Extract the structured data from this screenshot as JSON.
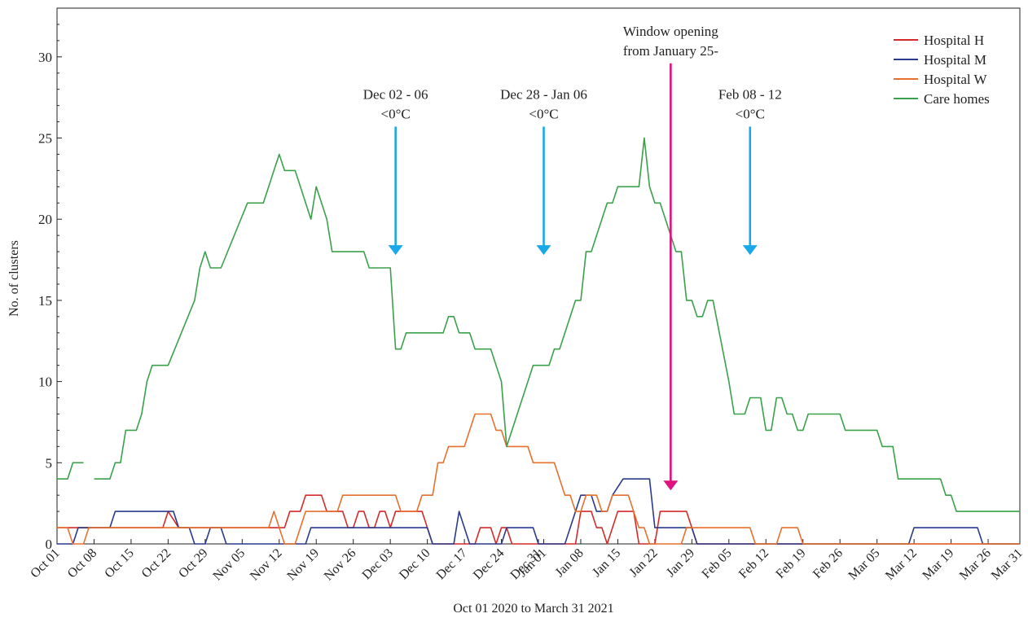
{
  "chart_data": {
    "type": "line",
    "xlabel": "Oct 01 2020 to March 31 2021",
    "ylabel": "No. of clusters",
    "ylim": [
      0,
      33
    ],
    "yticks": [
      0,
      5,
      10,
      15,
      20,
      25,
      30
    ],
    "xlim": [
      0,
      182
    ],
    "xticks": [
      {
        "day": 0,
        "label": "Oct 01"
      },
      {
        "day": 7,
        "label": "Oct 08"
      },
      {
        "day": 14,
        "label": "Oct 15"
      },
      {
        "day": 21,
        "label": "Oct 22"
      },
      {
        "day": 28,
        "label": "Oct 29"
      },
      {
        "day": 35,
        "label": "Nov 05"
      },
      {
        "day": 42,
        "label": "Nov 12"
      },
      {
        "day": 49,
        "label": "Nov 19"
      },
      {
        "day": 56,
        "label": "Nov 26"
      },
      {
        "day": 63,
        "label": "Dec 03"
      },
      {
        "day": 70,
        "label": "Dec 10"
      },
      {
        "day": 77,
        "label": "Dec 17"
      },
      {
        "day": 84,
        "label": "Dec 24"
      },
      {
        "day": 91,
        "label": "Dec 31"
      },
      {
        "day": 92,
        "label": "Jan 01"
      },
      {
        "day": 99,
        "label": "Jan 08"
      },
      {
        "day": 106,
        "label": "Jan 15"
      },
      {
        "day": 113,
        "label": "Jan 22"
      },
      {
        "day": 120,
        "label": "Jan 29"
      },
      {
        "day": 127,
        "label": "Feb 05"
      },
      {
        "day": 134,
        "label": "Feb 12"
      },
      {
        "day": 141,
        "label": "Feb 19"
      },
      {
        "day": 148,
        "label": "Feb 26"
      },
      {
        "day": 155,
        "label": "Mar 05"
      },
      {
        "day": 162,
        "label": "Mar 12"
      },
      {
        "day": 169,
        "label": "Mar 19"
      },
      {
        "day": 176,
        "label": "Mar 26"
      },
      {
        "day": 182,
        "label": "Mar 31"
      }
    ],
    "legend_position": "top-right",
    "series": [
      {
        "name": "Hospital H",
        "color": "#d42a2a",
        "points": [
          [
            0,
            1
          ],
          [
            20,
            1
          ],
          [
            21,
            2
          ],
          [
            23,
            1
          ],
          [
            35,
            1
          ],
          [
            41,
            1
          ],
          [
            43,
            1
          ],
          [
            44,
            2
          ],
          [
            46,
            2
          ],
          [
            47,
            3
          ],
          [
            50,
            3
          ],
          [
            51,
            2
          ],
          [
            54,
            2
          ],
          [
            55,
            1
          ],
          [
            56,
            1
          ],
          [
            57,
            2
          ],
          [
            58,
            2
          ],
          [
            59,
            1
          ],
          [
            60,
            1
          ],
          [
            61,
            2
          ],
          [
            62,
            2
          ],
          [
            63,
            1
          ],
          [
            64,
            2
          ],
          [
            69,
            2
          ],
          [
            70,
            1
          ],
          [
            71,
            0
          ],
          [
            79,
            0
          ],
          [
            80,
            1
          ],
          [
            82,
            1
          ],
          [
            83,
            0
          ],
          [
            84,
            1
          ],
          [
            85,
            1
          ],
          [
            86,
            0
          ],
          [
            98,
            0
          ],
          [
            99,
            2
          ],
          [
            101,
            2
          ],
          [
            102,
            1
          ],
          [
            103,
            1
          ],
          [
            104,
            0
          ],
          [
            106,
            2
          ],
          [
            109,
            2
          ],
          [
            110,
            0
          ],
          [
            113,
            0
          ],
          [
            114,
            2
          ],
          [
            119,
            2
          ],
          [
            120,
            1
          ],
          [
            121,
            0
          ],
          [
            182,
            0
          ]
        ]
      },
      {
        "name": "Hospital M",
        "color": "#2a3a8c",
        "points": [
          [
            0,
            0
          ],
          [
            3,
            0
          ],
          [
            4,
            1
          ],
          [
            10,
            1
          ],
          [
            11,
            2
          ],
          [
            22,
            2
          ],
          [
            23,
            1
          ],
          [
            25,
            1
          ],
          [
            26,
            0
          ],
          [
            28,
            0
          ],
          [
            29,
            1
          ],
          [
            31,
            1
          ],
          [
            32,
            0
          ],
          [
            47,
            0
          ],
          [
            48,
            1
          ],
          [
            56,
            1
          ],
          [
            57,
            1
          ],
          [
            70,
            1
          ],
          [
            71,
            0
          ],
          [
            75,
            0
          ],
          [
            76,
            2
          ],
          [
            77,
            1
          ],
          [
            78,
            0
          ],
          [
            84,
            0
          ],
          [
            85,
            1
          ],
          [
            90,
            1
          ],
          [
            91,
            0
          ],
          [
            96,
            0
          ],
          [
            97,
            1
          ],
          [
            99,
            3
          ],
          [
            101,
            3
          ],
          [
            102,
            2
          ],
          [
            104,
            2
          ],
          [
            105,
            3
          ],
          [
            107,
            4
          ],
          [
            112,
            4
          ],
          [
            113,
            1
          ],
          [
            116,
            1
          ],
          [
            120,
            1
          ],
          [
            121,
            0
          ],
          [
            161,
            0
          ],
          [
            162,
            1
          ],
          [
            174,
            1
          ],
          [
            175,
            0
          ],
          [
            182,
            0
          ]
        ]
      },
      {
        "name": "Hospital W",
        "color": "#e8702e",
        "points": [
          [
            0,
            1
          ],
          [
            2,
            1
          ],
          [
            3,
            0
          ],
          [
            5,
            0
          ],
          [
            6,
            1
          ],
          [
            40,
            1
          ],
          [
            41,
            2
          ],
          [
            42,
            1
          ],
          [
            43,
            0
          ],
          [
            45,
            0
          ],
          [
            46,
            1
          ],
          [
            47,
            2
          ],
          [
            53,
            2
          ],
          [
            54,
            3
          ],
          [
            64,
            3
          ],
          [
            65,
            2
          ],
          [
            68,
            2
          ],
          [
            69,
            3
          ],
          [
            71,
            3
          ],
          [
            72,
            5
          ],
          [
            73,
            5
          ],
          [
            74,
            6
          ],
          [
            77,
            6
          ],
          [
            78,
            7
          ],
          [
            79,
            8
          ],
          [
            82,
            8
          ],
          [
            83,
            7
          ],
          [
            84,
            7
          ],
          [
            85,
            6
          ],
          [
            89,
            6
          ],
          [
            90,
            5
          ],
          [
            94,
            5
          ],
          [
            96,
            3
          ],
          [
            97,
            3
          ],
          [
            98,
            2
          ],
          [
            99,
            2
          ],
          [
            100,
            3
          ],
          [
            102,
            3
          ],
          [
            103,
            2
          ],
          [
            104,
            2
          ],
          [
            105,
            3
          ],
          [
            108,
            3
          ],
          [
            109,
            2
          ],
          [
            110,
            1
          ],
          [
            111,
            1
          ],
          [
            112,
            0
          ],
          [
            118,
            0
          ],
          [
            119,
            1
          ],
          [
            131,
            1
          ],
          [
            132,
            0
          ],
          [
            136,
            0
          ],
          [
            137,
            1
          ],
          [
            140,
            1
          ],
          [
            141,
            0
          ],
          [
            182,
            0
          ]
        ]
      },
      {
        "name": "Care homes",
        "color": "#3aa14a",
        "points": [
          [
            0,
            4
          ],
          [
            2,
            4
          ],
          [
            3,
            5
          ],
          [
            5,
            5
          ],
          null,
          [
            7,
            4
          ],
          [
            10,
            4
          ],
          [
            11,
            5
          ],
          [
            12,
            5
          ],
          [
            13,
            7
          ],
          [
            15,
            7
          ],
          [
            16,
            8
          ],
          [
            17,
            10
          ],
          [
            18,
            11
          ],
          [
            21,
            11
          ],
          [
            26,
            15
          ],
          [
            27,
            17
          ],
          [
            28,
            18
          ],
          [
            29,
            17
          ],
          [
            31,
            17
          ],
          [
            36,
            21
          ],
          [
            39,
            21
          ],
          [
            41,
            23
          ],
          [
            42,
            24
          ],
          [
            43,
            23
          ],
          [
            45,
            23
          ],
          [
            48,
            20
          ],
          [
            49,
            22
          ],
          [
            51,
            20
          ],
          [
            52,
            18
          ],
          [
            58,
            18
          ],
          [
            59,
            17
          ],
          [
            63,
            17
          ],
          [
            64,
            12
          ],
          [
            65,
            12
          ],
          [
            66,
            13
          ],
          [
            73,
            13
          ],
          [
            74,
            14
          ],
          [
            75,
            14
          ],
          [
            76,
            13
          ],
          [
            78,
            13
          ],
          [
            79,
            12
          ],
          [
            82,
            12
          ],
          [
            84,
            10
          ],
          [
            85,
            6
          ],
          [
            90,
            11
          ],
          [
            93,
            11
          ],
          [
            94,
            12
          ],
          [
            95,
            12
          ],
          [
            98,
            15
          ],
          [
            99,
            15
          ],
          [
            100,
            18
          ],
          [
            101,
            18
          ],
          [
            104,
            21
          ],
          [
            105,
            21
          ],
          [
            106,
            22
          ],
          [
            108,
            22
          ],
          [
            110,
            22
          ],
          [
            111,
            25
          ],
          [
            112,
            22
          ],
          [
            113,
            21
          ],
          [
            114,
            21
          ],
          [
            117,
            18
          ],
          [
            118,
            18
          ],
          [
            119,
            15
          ],
          [
            120,
            15
          ],
          [
            121,
            14
          ],
          [
            122,
            14
          ],
          [
            123,
            15
          ],
          [
            124,
            15
          ],
          [
            127,
            10
          ],
          [
            128,
            8
          ],
          [
            130,
            8
          ],
          [
            131,
            9
          ],
          [
            133,
            9
          ],
          [
            134,
            7
          ],
          [
            135,
            7
          ],
          [
            136,
            9
          ],
          [
            137,
            9
          ],
          [
            138,
            8
          ],
          [
            139,
            8
          ],
          [
            140,
            7
          ],
          [
            141,
            7
          ],
          [
            142,
            8
          ],
          [
            148,
            8
          ],
          [
            149,
            7
          ],
          [
            155,
            7
          ],
          [
            156,
            6
          ],
          [
            158,
            6
          ],
          [
            159,
            4
          ],
          [
            167,
            4
          ],
          [
            168,
            3
          ],
          [
            169,
            3
          ],
          [
            170,
            2
          ],
          [
            182,
            2
          ]
        ]
      }
    ],
    "annotations": [
      {
        "label_lines": [
          "Dec 02 - 06",
          "<0°C"
        ],
        "day": 64,
        "y_top": 25.7,
        "y_bottom": 17.8,
        "color": "#19a9e8"
      },
      {
        "label_lines": [
          "Dec 28 - Jan 06",
          "<0°C"
        ],
        "day": 92,
        "y_top": 25.7,
        "y_bottom": 17.8,
        "color": "#19a9e8"
      },
      {
        "label_lines": [
          "Feb 08 - 12",
          "<0°C"
        ],
        "day": 131,
        "y_top": 25.7,
        "y_bottom": 17.8,
        "color": "#19a9e8"
      },
      {
        "label_lines": [
          "Window opening",
          "from January 25-"
        ],
        "day": 116,
        "y_top": 29.6,
        "y_bottom": 3.3,
        "color": "#e0127f"
      }
    ]
  }
}
